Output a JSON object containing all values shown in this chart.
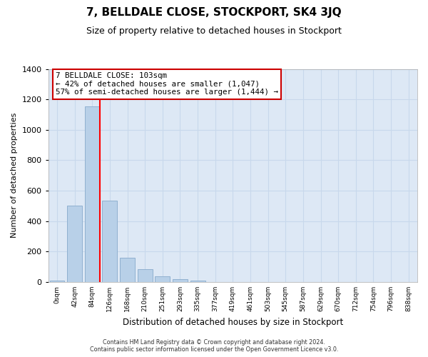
{
  "title": "7, BELLDALE CLOSE, STOCKPORT, SK4 3JQ",
  "subtitle": "Size of property relative to detached houses in Stockport",
  "xlabel": "Distribution of detached houses by size in Stockport",
  "ylabel": "Number of detached properties",
  "bar_labels": [
    "0sqm",
    "42sqm",
    "84sqm",
    "126sqm",
    "168sqm",
    "210sqm",
    "251sqm",
    "293sqm",
    "335sqm",
    "377sqm",
    "419sqm",
    "461sqm",
    "503sqm",
    "545sqm",
    "587sqm",
    "629sqm",
    "670sqm",
    "712sqm",
    "754sqm",
    "796sqm",
    "838sqm"
  ],
  "bar_values": [
    10,
    500,
    1155,
    535,
    160,
    85,
    35,
    18,
    8,
    0,
    0,
    0,
    0,
    0,
    0,
    0,
    0,
    0,
    0,
    0,
    0
  ],
  "bar_color": "#b8d0e8",
  "bar_edge_color": "#90b0d0",
  "vline_x": 2.42,
  "vline_color": "red",
  "ylim": [
    0,
    1400
  ],
  "yticks": [
    0,
    200,
    400,
    600,
    800,
    1000,
    1200,
    1400
  ],
  "annotation_title": "7 BELLDALE CLOSE: 103sqm",
  "annotation_line1": "← 42% of detached houses are smaller (1,047)",
  "annotation_line2": "57% of semi-detached houses are larger (1,444) →",
  "footer_line1": "Contains HM Land Registry data © Crown copyright and database right 2024.",
  "footer_line2": "Contains public sector information licensed under the Open Government Licence v3.0.",
  "grid_color": "#c8d8ec",
  "bg_color": "#ffffff",
  "plot_bg_color": "#dde8f5"
}
